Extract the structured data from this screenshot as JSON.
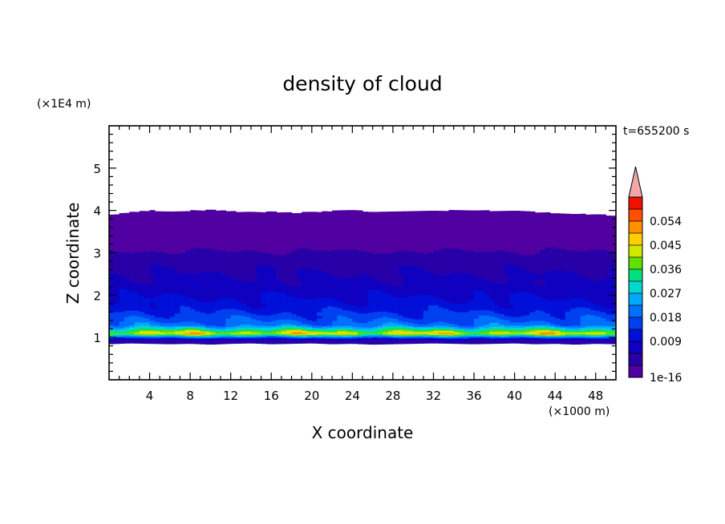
{
  "chart_data": {
    "type": "heatmap",
    "title": "density of cloud",
    "xlabel": "X coordinate",
    "ylabel": "Z coordinate",
    "x_unit": "(×1000 m)",
    "y_unit": "(×1E4 m)",
    "time_label": "t=655200 s",
    "xlim": [
      0,
      50
    ],
    "ylim": [
      0,
      6
    ],
    "x_ticks": [
      4,
      8,
      12,
      16,
      20,
      24,
      28,
      32,
      36,
      40,
      44,
      48
    ],
    "y_ticks": [
      1,
      2,
      3,
      4,
      5
    ],
    "colorbar": {
      "labels": [
        "1e-16",
        "0.009",
        "0.018",
        "0.027",
        "0.036",
        "0.045",
        "0.054"
      ],
      "levels": [
        0,
        0.0045,
        0.009,
        0.0135,
        0.018,
        0.0225,
        0.027,
        0.0315,
        0.036,
        0.0405,
        0.045,
        0.0495,
        0.054,
        0.0585
      ],
      "colors": [
        "#5000a0",
        "#2800a8",
        "#1000c0",
        "#0010d8",
        "#0040f0",
        "#0070ff",
        "#00a8ff",
        "#00d8d0",
        "#00e080",
        "#60e000",
        "#d0e800",
        "#ffd000",
        "#ff9000",
        "#ff5000",
        "#f01000"
      ],
      "overflow_color": "#f4a6a6",
      "extend": "max"
    },
    "profile": {
      "z": [
        0.85,
        0.95,
        1.0,
        1.05,
        1.1,
        1.15,
        1.2,
        1.25,
        1.3,
        1.4,
        1.5,
        1.6,
        1.7,
        1.8,
        1.9,
        2.0,
        2.1,
        2.2,
        2.3,
        2.5,
        2.7,
        2.9,
        3.1,
        3.3,
        3.6,
        3.9
      ],
      "density": [
        0.005,
        0.009,
        0.02,
        0.034,
        0.05,
        0.043,
        0.036,
        0.03,
        0.025,
        0.022,
        0.02,
        0.018,
        0.016,
        0.015,
        0.014,
        0.013,
        0.012,
        0.011,
        0.01,
        0.009,
        0.008,
        0.006,
        0.004,
        0.003,
        0.001,
        0.0
      ]
    },
    "cloud_bottom": [
      0.85,
      0.87,
      0.86,
      0.85,
      0.86,
      0.84,
      0.86,
      0.87,
      0.85,
      0.86,
      0.87,
      0.85,
      0.86,
      0.84,
      0.85,
      0.86,
      0.87,
      0.86,
      0.85,
      0.86,
      0.87,
      0.85,
      0.86,
      0.84,
      0.86,
      0.85
    ],
    "cloud_top": [
      3.88,
      3.95,
      3.99,
      3.96,
      3.98,
      4.0,
      3.97,
      3.95,
      3.96,
      3.93,
      3.95,
      3.98,
      3.99,
      3.96,
      3.95,
      3.97,
      3.98,
      3.99,
      4.0,
      3.98,
      3.97,
      3.95,
      3.93,
      3.91,
      3.89,
      3.87
    ],
    "grid": false,
    "legend": "right"
  }
}
